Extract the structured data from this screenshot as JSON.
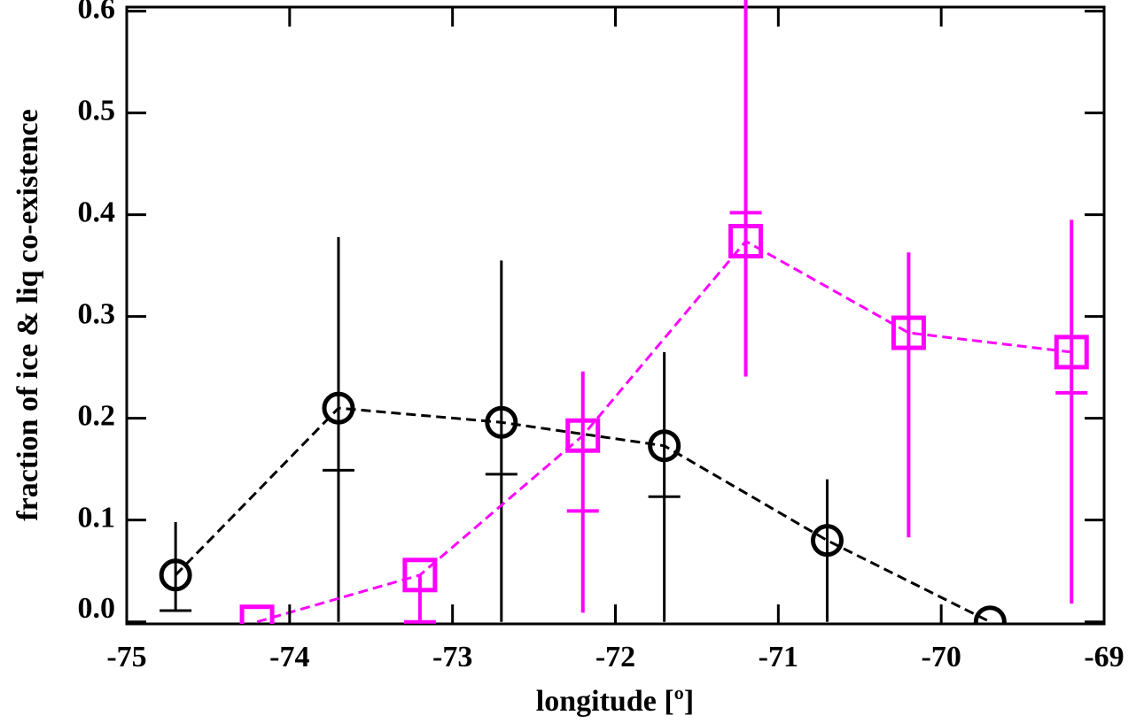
{
  "chart_data": {
    "type": "line",
    "xlabel": "longitude [º]",
    "ylabel": "fraction of ice & liq co-existence",
    "xlim": [
      -75,
      -69
    ],
    "xticks": [
      -75,
      -74,
      -73,
      -72,
      -71,
      -70,
      -69
    ],
    "ylim": [
      -0.002,
      0.604
    ],
    "yticks": [
      {
        "value": 0,
        "label": "0.0"
      },
      {
        "value": 0.1,
        "label": "0.1"
      },
      {
        "value": 0.2,
        "label": "0.2"
      },
      {
        "value": 0.3,
        "label": "0.3"
      },
      {
        "value": 0.4,
        "label": "0.4"
      },
      {
        "value": 0.5,
        "label": "0.5"
      },
      {
        "value": 0.6,
        "label": "0.6"
      }
    ],
    "series": [
      {
        "color": "#000000",
        "marker": "circle",
        "x": [
          -74.7,
          -73.7,
          -72.7,
          -71.7,
          -70.7,
          -69.7
        ],
        "values": [
          0.046,
          0.21,
          0.196,
          0.173,
          0.08,
          0.0
        ],
        "err_low": [
          0.011,
          0,
          0,
          0,
          0,
          null
        ],
        "err_high": [
          0.098,
          0.378,
          0.355,
          0.265,
          0.14,
          null
        ],
        "tick": [
          0.011,
          0.149,
          0.145,
          0.123,
          null,
          null
        ]
      },
      {
        "color": "#ff00ff",
        "marker": "square",
        "x": [
          -74.2,
          -73.2,
          -72.2,
          -71.2,
          -70.2,
          -69.2
        ],
        "values": [
          0.0,
          0.046,
          0.183,
          0.374,
          0.284,
          0.265
        ],
        "err_low": [
          null,
          0.0,
          0.009,
          0.241,
          0.083,
          0.018
        ],
        "err_high": [
          null,
          0.046,
          0.246,
          0.62,
          0.363,
          0.395
        ],
        "tick": [
          null,
          0.0,
          0.109,
          0.402,
          null,
          0.225
        ]
      }
    ]
  }
}
